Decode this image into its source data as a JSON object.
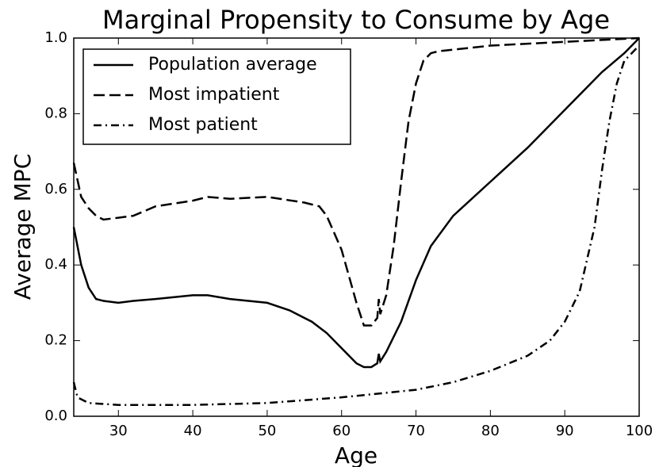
{
  "chart_data": {
    "type": "line",
    "title": "Marginal Propensity to Consume by Age",
    "xlabel": "Age",
    "ylabel": "Average MPC",
    "xlim": [
      24,
      100
    ],
    "ylim": [
      0,
      1
    ],
    "xticks": [
      30,
      40,
      50,
      60,
      70,
      80,
      90,
      100
    ],
    "yticks": [
      {
        "value": 0,
        "label": "0.0"
      },
      0.2,
      0.4,
      0.6,
      0.8,
      {
        "value": 1,
        "label": "1.0"
      }
    ],
    "legend": "upper left",
    "series": [
      {
        "name": "Population average",
        "color": "#000000",
        "linestyle": "solid",
        "x": [
          24,
          25,
          26,
          27,
          28,
          30,
          32,
          35,
          40,
          42,
          45,
          50,
          53,
          56,
          58,
          60,
          62,
          63,
          64,
          64.8,
          65,
          65.2,
          66,
          68,
          70,
          72,
          75,
          80,
          85,
          90,
          95,
          98,
          100
        ],
        "values": [
          0.5,
          0.4,
          0.34,
          0.31,
          0.305,
          0.3,
          0.305,
          0.31,
          0.32,
          0.32,
          0.31,
          0.3,
          0.28,
          0.25,
          0.22,
          0.18,
          0.14,
          0.13,
          0.13,
          0.14,
          0.165,
          0.145,
          0.17,
          0.25,
          0.36,
          0.45,
          0.53,
          0.62,
          0.71,
          0.81,
          0.91,
          0.96,
          1.0
        ]
      },
      {
        "name": "Most impatient",
        "color": "#000000",
        "linestyle": "dashed",
        "x": [
          24,
          25,
          26,
          27,
          28,
          30,
          32,
          35,
          40,
          42,
          45,
          50,
          55,
          57,
          58,
          60,
          62,
          63,
          64,
          64.8,
          65,
          65.2,
          66,
          67,
          68,
          69,
          70,
          71,
          72,
          73,
          80,
          90,
          100
        ],
        "values": [
          0.67,
          0.58,
          0.55,
          0.53,
          0.52,
          0.525,
          0.53,
          0.555,
          0.57,
          0.58,
          0.575,
          0.58,
          0.565,
          0.555,
          0.53,
          0.44,
          0.3,
          0.24,
          0.24,
          0.26,
          0.31,
          0.27,
          0.32,
          0.45,
          0.62,
          0.78,
          0.88,
          0.94,
          0.96,
          0.965,
          0.98,
          0.99,
          1.0
        ]
      },
      {
        "name": "Most patient",
        "color": "#000000",
        "linestyle": "dashdot",
        "x": [
          24,
          24.5,
          26,
          30,
          40,
          50,
          60,
          70,
          75,
          80,
          85,
          88,
          90,
          92,
          94,
          95,
          96,
          97,
          98,
          100
        ],
        "values": [
          0.09,
          0.05,
          0.035,
          0.03,
          0.03,
          0.035,
          0.05,
          0.07,
          0.09,
          0.12,
          0.16,
          0.2,
          0.25,
          0.33,
          0.5,
          0.65,
          0.78,
          0.88,
          0.94,
          0.98
        ]
      }
    ]
  }
}
